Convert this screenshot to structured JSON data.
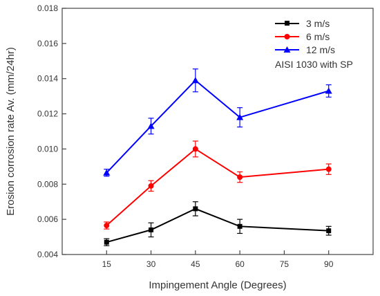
{
  "chart_data": {
    "type": "line",
    "title": "",
    "xlabel": "Impingement Angle (Degrees)",
    "ylabel": "Erosion corrosion rate Av. (mm/24hr)",
    "xlim": [
      0,
      105
    ],
    "ylim": [
      0.004,
      0.018
    ],
    "xticks": [
      15,
      30,
      45,
      60,
      75,
      90
    ],
    "xtick_labels": [
      "15",
      "30",
      "45",
      "60",
      "75",
      "90"
    ],
    "yticks": [
      0.004,
      0.006,
      0.008,
      0.01,
      0.012,
      0.014,
      0.016,
      0.018
    ],
    "ytick_labels": [
      "0.004",
      "0.006",
      "0.008",
      "0.010",
      "0.012",
      "0.014",
      "0.016",
      "0.018"
    ],
    "grid": false,
    "legend_position": "top-right",
    "legend_note": "AISI 1030 with SP",
    "x": [
      15,
      30,
      45,
      60,
      90
    ],
    "series": [
      {
        "name": "3 m/s",
        "color": "#000000",
        "marker": "square",
        "values": [
          0.0047,
          0.0054,
          0.0066,
          0.0056,
          0.00535
        ],
        "errors": [
          0.0002,
          0.0004,
          0.0004,
          0.0004,
          0.00025
        ]
      },
      {
        "name": "6 m/s",
        "color": "#ff0000",
        "marker": "circle",
        "values": [
          0.00565,
          0.0079,
          0.01,
          0.0084,
          0.00885
        ],
        "errors": [
          0.0002,
          0.0003,
          0.00045,
          0.0003,
          0.0003
        ]
      },
      {
        "name": "12 m/s",
        "color": "#0000ff",
        "marker": "triangle",
        "values": [
          0.00865,
          0.0113,
          0.0139,
          0.0118,
          0.0133
        ],
        "errors": [
          0.0002,
          0.00045,
          0.00065,
          0.00055,
          0.00035
        ]
      }
    ]
  }
}
